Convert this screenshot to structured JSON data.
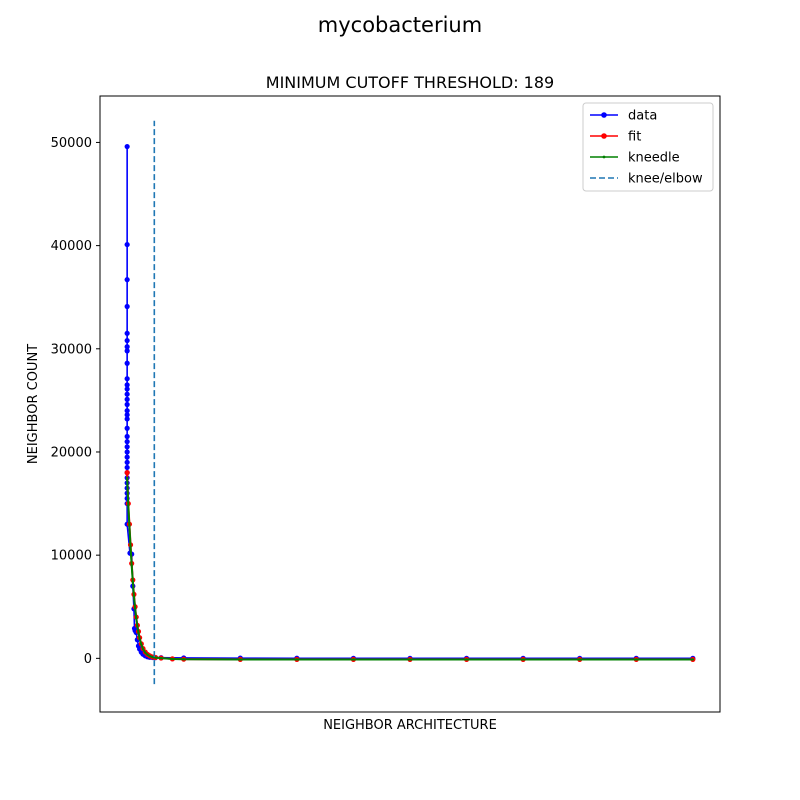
{
  "chart_data": {
    "type": "line",
    "suptitle": "mycobacterium",
    "title": "MINIMUM CUTOFF THRESHOLD: 189",
    "xlabel": "NEIGHBOR ARCHITECTURE",
    "ylabel": "NEIGHBOR COUNT",
    "ylim": [
      -5200,
      54500
    ],
    "xlim": [
      -0.048,
      1.048
    ],
    "y_ticks": [
      0,
      10000,
      20000,
      30000,
      40000,
      50000
    ],
    "x_ticks_shown": false,
    "grid": false,
    "legend_position": "top-right",
    "knee": {
      "name": "knee/elbow",
      "x": 0.048,
      "y_range": [
        -2500,
        52100
      ],
      "color": "#1f77b4"
    },
    "series": [
      {
        "name": "data",
        "color": "#0000ff",
        "marker": "circle",
        "x": [
          0,
          0,
          0,
          0,
          0,
          0,
          0,
          0,
          0,
          0,
          0,
          0,
          0,
          0,
          0,
          0,
          0,
          0,
          0,
          0,
          0,
          0,
          0,
          0,
          0,
          0,
          0,
          0,
          0,
          0,
          0,
          0,
          0,
          0,
          0.005,
          0.008,
          0.01,
          0.012,
          0.013,
          0.014,
          0.016,
          0.018,
          0.02,
          0.022,
          0.025,
          0.028,
          0.032,
          0.036,
          0.04,
          0.045,
          0.05,
          0.06,
          0.1,
          0.2,
          0.3,
          0.4,
          0.5,
          0.6,
          0.7,
          0.8,
          0.9,
          1.0
        ],
        "y": [
          49600,
          40100,
          36700,
          34100,
          31500,
          30800,
          30200,
          29800,
          28600,
          27100,
          26500,
          26100,
          25600,
          25100,
          24600,
          24000,
          23600,
          23200,
          22300,
          21500,
          21000,
          20500,
          20000,
          19500,
          19000,
          18500,
          18000,
          17500,
          17000,
          16500,
          16000,
          15500,
          15000,
          13000,
          10200,
          10100,
          7000,
          4800,
          2900,
          2700,
          2500,
          1800,
          1200,
          900,
          600,
          400,
          250,
          150,
          100,
          80,
          70,
          60,
          40,
          20,
          10,
          5,
          0,
          0,
          0,
          0,
          0,
          0
        ]
      },
      {
        "name": "fit",
        "color": "#ff0000",
        "marker": "circle",
        "x": [
          0,
          0.002,
          0.004,
          0.006,
          0.008,
          0.01,
          0.012,
          0.014,
          0.016,
          0.018,
          0.02,
          0.022,
          0.025,
          0.028,
          0.032,
          0.036,
          0.04,
          0.045,
          0.05,
          0.06,
          0.08,
          0.1,
          0.2,
          0.3,
          0.4,
          0.5,
          0.6,
          0.7,
          0.8,
          0.9,
          1.0
        ],
        "y": [
          18000,
          15000,
          13000,
          11000,
          9200,
          7600,
          6200,
          5000,
          4000,
          3200,
          2600,
          2000,
          1400,
          950,
          600,
          380,
          240,
          130,
          80,
          30,
          -50,
          -80,
          -100,
          -100,
          -100,
          -100,
          -100,
          -100,
          -100,
          -100,
          -100
        ]
      },
      {
        "name": "kneedle",
        "color": "#008000",
        "marker": "dot",
        "x": [
          0,
          0.002,
          0.004,
          0.006,
          0.008,
          0.01,
          0.012,
          0.014,
          0.016,
          0.018,
          0.02,
          0.022,
          0.025,
          0.028,
          0.032,
          0.036,
          0.04,
          0.045,
          0.05,
          0.06,
          0.08,
          0.1,
          0.2,
          0.3,
          0.4,
          0.5,
          0.6,
          0.7,
          0.8,
          0.9,
          1.0
        ],
        "y": [
          17500,
          14800,
          12800,
          10800,
          9000,
          7400,
          6000,
          4900,
          3900,
          3100,
          2500,
          1900,
          1350,
          900,
          560,
          350,
          220,
          120,
          70,
          20,
          -60,
          -90,
          -110,
          -110,
          -110,
          -110,
          -110,
          -110,
          -110,
          -110,
          -110
        ]
      }
    ]
  }
}
